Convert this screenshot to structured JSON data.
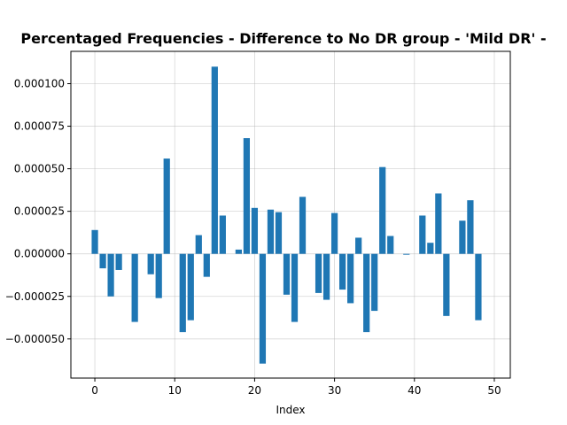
{
  "chart_data": {
    "type": "bar",
    "title": "Percentaged Frequencies - Difference to No DR group - 'Mild DR' -",
    "xlabel": "Index",
    "ylabel": "",
    "xlim": [
      -3,
      52
    ],
    "ylim": [
      -7.3e-05,
      0.000119
    ],
    "xticks": [
      0,
      10,
      20,
      30,
      40,
      50
    ],
    "xtick_labels": [
      "0",
      "10",
      "20",
      "30",
      "40",
      "50"
    ],
    "yticks": [
      -5e-05,
      -2.5e-05,
      0,
      2.5e-05,
      5e-05,
      7.5e-05,
      0.0001
    ],
    "ytick_labels": [
      "−0.000050",
      "−0.000025",
      "0.000000",
      "0.000025",
      "0.000050",
      "0.000075",
      "0.000100"
    ],
    "grid": true,
    "bar_color": "#1f77b4",
    "x": [
      0,
      1,
      2,
      3,
      4,
      5,
      6,
      7,
      8,
      9,
      10,
      11,
      12,
      13,
      14,
      15,
      16,
      17,
      18,
      19,
      20,
      21,
      22,
      23,
      24,
      25,
      26,
      27,
      28,
      29,
      30,
      31,
      32,
      33,
      34,
      35,
      36,
      37,
      38,
      39,
      40,
      41,
      42,
      43,
      44,
      45,
      46,
      47,
      48
    ],
    "values": [
      1.4e-05,
      -8.5e-06,
      -2.5e-05,
      -9.5e-06,
      0,
      -4e-05,
      0,
      -1.2e-05,
      -2.6e-05,
      5.6e-05,
      0,
      -4.6e-05,
      -3.9e-05,
      1.1e-05,
      -1.35e-05,
      0.00011,
      2.25e-05,
      0,
      2.5e-06,
      6.8e-05,
      2.7e-05,
      -6.45e-05,
      2.6e-05,
      2.45e-05,
      -2.4e-05,
      -4e-05,
      3.35e-05,
      0,
      -2.3e-05,
      -2.7e-05,
      2.4e-05,
      -2.1e-05,
      -2.9e-05,
      9.5e-06,
      -4.6e-05,
      -3.35e-05,
      5.1e-05,
      1.05e-05,
      0,
      -5e-07,
      0,
      2.25e-05,
      6.5e-06,
      3.55e-05,
      -3.65e-05,
      0,
      1.95e-05,
      3.15e-05,
      -3.9e-05
    ]
  }
}
